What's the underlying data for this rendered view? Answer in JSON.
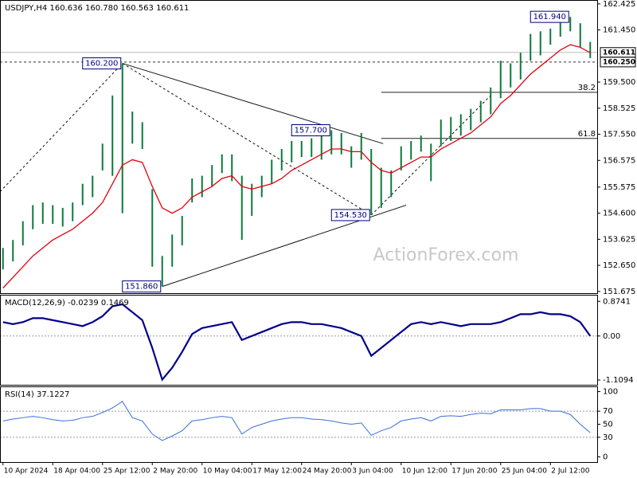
{
  "chart_data": [
    {
      "type": "range-bar",
      "title": "USDJPY,H4  160.636 160.780 160.563 160.611",
      "watermark": "ActionForex.com",
      "color": "#0b7a3b",
      "high": [
        153.3,
        153.6,
        154.3,
        154.9,
        155.0,
        154.9,
        154.8,
        155.0,
        155.7,
        156.0,
        157.2,
        159.0,
        160.2,
        158.4,
        158.0,
        155.5,
        153.0,
        153.8,
        154.5,
        155.9,
        156.0,
        156.4,
        156.8,
        156.8,
        156.0,
        155.7,
        156.0,
        156.6,
        157.0,
        157.3,
        157.3,
        157.4,
        157.7,
        157.7,
        157.6,
        157.1,
        157.6,
        157.0,
        156.3,
        156.2,
        157.1,
        157.3,
        157.5,
        157.2,
        158.1,
        158.2,
        158.3,
        158.5,
        158.8,
        159.3,
        160.3,
        160.2,
        160.6,
        161.3,
        161.4,
        161.5,
        161.8,
        161.94,
        161.7,
        161.0
      ],
      "low": [
        152.5,
        152.8,
        153.4,
        154.0,
        154.2,
        154.2,
        154.1,
        154.3,
        154.9,
        155.2,
        156.2,
        156.0,
        154.6,
        157.2,
        157.0,
        152.6,
        151.86,
        152.6,
        153.4,
        155.0,
        155.2,
        155.6,
        156.1,
        155.8,
        153.6,
        154.5,
        155.2,
        155.7,
        156.2,
        156.5,
        156.7,
        156.7,
        156.6,
        156.8,
        156.8,
        156.3,
        156.6,
        154.53,
        154.8,
        155.2,
        156.2,
        156.6,
        156.9,
        155.8,
        157.1,
        157.3,
        157.5,
        157.7,
        158.0,
        158.3,
        158.9,
        159.3,
        159.6,
        160.3,
        160.5,
        160.9,
        161.2,
        161.4,
        160.8,
        160.4
      ],
      "ma": {
        "color": "#e3000f",
        "values": [
          151.8,
          152.2,
          152.6,
          153.0,
          153.3,
          153.6,
          153.8,
          154.0,
          154.3,
          154.6,
          155.0,
          155.7,
          156.4,
          156.6,
          156.5,
          155.6,
          154.8,
          154.6,
          154.8,
          155.2,
          155.4,
          155.6,
          155.9,
          156.0,
          155.6,
          155.5,
          155.6,
          155.7,
          155.9,
          156.2,
          156.4,
          156.6,
          156.8,
          157.0,
          157.0,
          156.9,
          156.9,
          156.5,
          156.2,
          156.1,
          156.3,
          156.5,
          156.7,
          156.7,
          157.0,
          157.2,
          157.4,
          157.6,
          157.9,
          158.2,
          158.7,
          159.0,
          159.4,
          159.8,
          160.1,
          160.4,
          160.7,
          160.9,
          160.8,
          160.6
        ]
      },
      "xlim": [
        -0.3,
        59.7
      ],
      "ylim": [
        151.61,
        162.57
      ],
      "yticks": [
        162.425,
        {
          "value": 161.45,
          "label": "161.450"
        },
        {
          "value": 159.5,
          "label": "159.500"
        },
        158.525,
        {
          "value": 157.55,
          "label": "157.550"
        },
        156.575,
        155.575,
        {
          "value": 154.6,
          "label": "154.600"
        },
        153.625,
        {
          "value": 152.65,
          "label": "152.650"
        },
        151.675
      ],
      "xticks": [
        {
          "value": 0,
          "label": "10 Apr 2024"
        },
        {
          "value": 5,
          "label": "18 Apr 04:00"
        },
        {
          "value": 10,
          "label": "25 Apr 12:00"
        },
        {
          "value": 15,
          "label": "2 May 20:00"
        },
        {
          "value": 20,
          "label": "10 May 04:00"
        },
        {
          "value": 25,
          "label": "17 May 12:00"
        },
        {
          "value": 30,
          "label": "24 May 20:00"
        },
        {
          "value": 35,
          "label": "3 Jun 04:00"
        },
        {
          "value": 40,
          "label": "10 Jun 12:00"
        },
        {
          "value": 45,
          "label": "17 Jun 20:00"
        },
        {
          "value": 50,
          "label": "25 Jun 04:00"
        },
        {
          "value": 55,
          "label": "2 Jul 12:00"
        }
      ],
      "price_marks": [
        {
          "value": 160.611,
          "label": "160.611",
          "style": "solid"
        },
        {
          "value": 160.25,
          "label": "160.250",
          "style": "dashed"
        }
      ],
      "annotations": [
        {
          "label": "160.200",
          "value": 160.2,
          "x": 12
        },
        {
          "label": "157.700",
          "value": 157.7,
          "x": 33
        },
        {
          "label": "154.530",
          "value": 154.53,
          "x": 37
        },
        {
          "label": "151.860",
          "value": 151.86,
          "x": 16
        },
        {
          "label": "161.940",
          "value": 161.94,
          "x": 57
        }
      ],
      "levels": [
        {
          "label": "38.2",
          "value": 159.12,
          "x": 38
        },
        {
          "label": "61.8",
          "value": 157.395,
          "x": 38
        }
      ],
      "lines": [
        {
          "style": "solid",
          "points": [
            [
              12,
              160.2
            ],
            [
              38.2,
              157.2
            ]
          ]
        },
        {
          "style": "solid",
          "points": [
            [
              16,
              151.86
            ],
            [
              40.5,
              154.9
            ]
          ]
        },
        {
          "style": "dashed",
          "points": [
            [
              12,
              160.2
            ],
            [
              37,
              154.53
            ]
          ]
        },
        {
          "style": "dashed",
          "points": [
            [
              -0.3,
              155.4
            ],
            [
              12,
              160.2
            ]
          ]
        },
        {
          "style": "dashed",
          "points": [
            [
              37,
              154.53
            ],
            [
              49,
              159.0
            ]
          ]
        }
      ]
    },
    {
      "type": "line",
      "title": "MACD(12,26,9) -0.0239 0.1469",
      "color": "#00008b",
      "values": [
        0.35,
        0.3,
        0.35,
        0.45,
        0.45,
        0.4,
        0.35,
        0.3,
        0.25,
        0.35,
        0.5,
        0.75,
        0.8,
        0.6,
        0.4,
        -0.3,
        -1.1,
        -0.8,
        -0.4,
        0.05,
        0.2,
        0.25,
        0.3,
        0.35,
        -0.1,
        0.0,
        0.1,
        0.2,
        0.3,
        0.35,
        0.35,
        0.3,
        0.3,
        0.25,
        0.2,
        0.1,
        0.0,
        -0.5,
        -0.3,
        -0.1,
        0.1,
        0.3,
        0.35,
        0.3,
        0.35,
        0.3,
        0.25,
        0.3,
        0.3,
        0.3,
        0.35,
        0.45,
        0.55,
        0.55,
        0.6,
        0.55,
        0.55,
        0.5,
        0.35,
        0.0
      ],
      "xlim": [
        -0.3,
        59.7
      ],
      "ylim": [
        -1.23,
        1.04
      ],
      "yticks": [
        0.8741,
        {
          "value": 0,
          "label": "0.00"
        },
        -1.1094
      ],
      "grid_at": [
        1
      ]
    },
    {
      "type": "line",
      "title": "RSI(14) 37.1227",
      "color": "#3a6fd8",
      "values": [
        55,
        58,
        60,
        62,
        60,
        57,
        55,
        56,
        60,
        62,
        68,
        75,
        85,
        60,
        55,
        35,
        25,
        32,
        40,
        55,
        57,
        60,
        62,
        60,
        35,
        45,
        50,
        55,
        58,
        60,
        60,
        58,
        57,
        55,
        52,
        50,
        52,
        33,
        40,
        45,
        55,
        58,
        60,
        55,
        62,
        63,
        62,
        65,
        67,
        66,
        72,
        72,
        72,
        74,
        74,
        70,
        70,
        65,
        50,
        37
      ],
      "xlim": [
        -0.3,
        59.7
      ],
      "ylim": [
        -8,
        108
      ],
      "yticks": [
        100,
        70,
        50,
        30,
        0
      ],
      "grid_at": [
        1,
        3
      ]
    }
  ]
}
